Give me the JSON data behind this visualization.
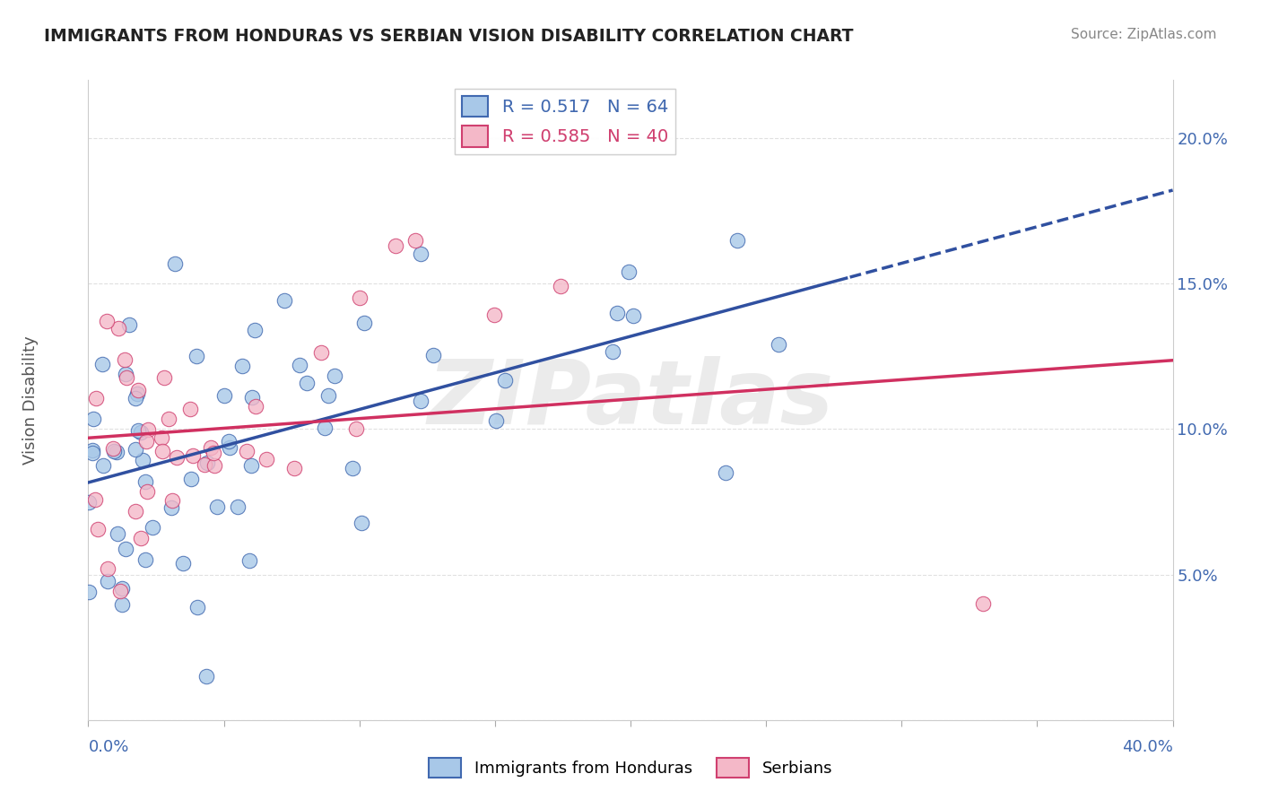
{
  "title": "IMMIGRANTS FROM HONDURAS VS SERBIAN VISION DISABILITY CORRELATION CHART",
  "source": "Source: ZipAtlas.com",
  "ylabel": "Vision Disability",
  "xmin": 0.0,
  "xmax": 0.4,
  "ymin": 0.0,
  "ymax": 0.22,
  "blue_R": 0.517,
  "blue_N": 64,
  "pink_R": 0.585,
  "pink_N": 40,
  "blue_face": "#a8c8e8",
  "blue_edge": "#4169b0",
  "pink_face": "#f4b8c8",
  "pink_edge": "#d04070",
  "blue_line": "#3050a0",
  "pink_line": "#d03060",
  "legend_blue": "Immigrants from Honduras",
  "legend_pink": "Serbians",
  "watermark": "ZIPatlas",
  "bg": "#ffffff",
  "grid": "#e0e0e0",
  "title_color": "#222222",
  "source_color": "#888888",
  "axis_color": "#4169b0"
}
